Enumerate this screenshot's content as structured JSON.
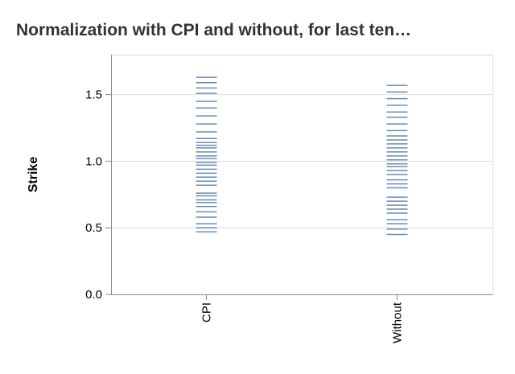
{
  "chart_data": {
    "type": "tick",
    "title": "Normalization with CPI and without, for last ten…",
    "y_label": "Strike",
    "categories": [
      "CPI",
      "Without"
    ],
    "values": [
      [
        1.63,
        1.59,
        1.55,
        1.51,
        1.45,
        1.4,
        1.34,
        1.28,
        1.22,
        1.17,
        1.14,
        1.12,
        1.1,
        1.07,
        1.04,
        1.02,
        0.99,
        0.97,
        0.94,
        0.91,
        0.88,
        0.85,
        0.82,
        0.76,
        0.74,
        0.71,
        0.69,
        0.66,
        0.62,
        0.58,
        0.53,
        0.5,
        0.47
      ],
      [
        1.57,
        1.52,
        1.47,
        1.42,
        1.37,
        1.33,
        1.28,
        1.23,
        1.19,
        1.16,
        1.13,
        1.1,
        1.07,
        1.04,
        1.01,
        0.98,
        0.96,
        0.93,
        0.9,
        0.86,
        0.83,
        0.8,
        0.73,
        0.7,
        0.67,
        0.64,
        0.61,
        0.56,
        0.53,
        0.49,
        0.45
      ]
    ],
    "color": "#4c78a8",
    "ylim": [
      0,
      1.8
    ],
    "yticks": [
      {
        "value": 0,
        "label": "0.0"
      },
      {
        "value": 0.5,
        "label": "0.5"
      },
      {
        "value": 1,
        "label": "1.0"
      },
      {
        "value": 1.5,
        "label": "1.5"
      }
    ],
    "grid": true
  }
}
